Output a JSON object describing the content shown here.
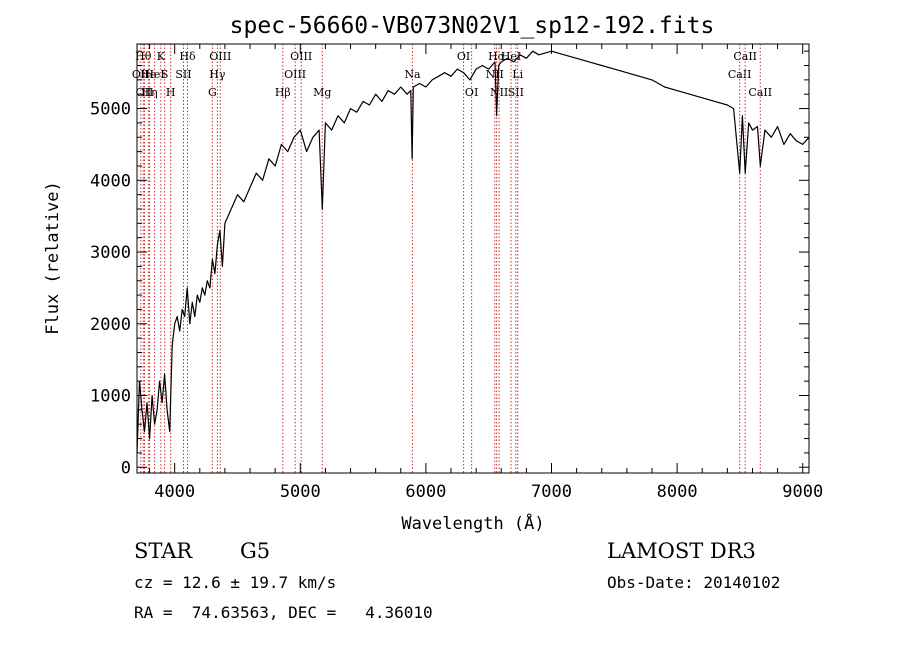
{
  "chart_data": {
    "type": "line",
    "title": "spec-56660-VB073N02V1_sp12-192.fits",
    "xlabel": "Wavelength (Å)",
    "ylabel": "Flux (relative)",
    "xlim": [
      3700,
      9050
    ],
    "ylim": [
      -80,
      5900
    ],
    "xticks": [
      4000,
      5000,
      6000,
      7000,
      8000,
      9000
    ],
    "yticks": [
      0,
      1000,
      2000,
      3000,
      4000,
      5000
    ],
    "series": [
      {
        "x": [
          3700,
          3720,
          3740,
          3760,
          3780,
          3800,
          3820,
          3840,
          3860,
          3880,
          3900,
          3920,
          3940,
          3960,
          3980,
          4000,
          4020,
          4040,
          4060,
          4080,
          4100,
          4120,
          4140,
          4160,
          4180,
          4200,
          4220,
          4240,
          4260,
          4280,
          4300,
          4320,
          4340,
          4360,
          4380,
          4400,
          4450,
          4500,
          4550,
          4600,
          4650,
          4700,
          4750,
          4800,
          4850,
          4900,
          4950,
          5000,
          5050,
          5100,
          5150,
          5175,
          5200,
          5250,
          5300,
          5350,
          5400,
          5450,
          5500,
          5550,
          5600,
          5650,
          5700,
          5750,
          5800,
          5850,
          5880,
          5890,
          5900,
          5950,
          6000,
          6050,
          6100,
          6150,
          6200,
          6250,
          6300,
          6350,
          6400,
          6450,
          6500,
          6550,
          6563,
          6580,
          6600,
          6650,
          6700,
          6750,
          6800,
          6850,
          6900,
          7000,
          7100,
          7200,
          7300,
          7400,
          7500,
          7600,
          7700,
          7800,
          7900,
          8000,
          8100,
          8200,
          8300,
          8400,
          8450,
          8498,
          8520,
          8542,
          8570,
          8600,
          8640,
          8662,
          8700,
          8750,
          8800,
          8850,
          8900,
          8950,
          9000,
          9050
        ],
        "y": [
          200,
          1200,
          800,
          500,
          900,
          400,
          1000,
          600,
          800,
          1200,
          900,
          1300,
          800,
          500,
          1700,
          2000,
          2100,
          1900,
          2200,
          2100,
          2500,
          2000,
          2300,
          2100,
          2400,
          2300,
          2500,
          2400,
          2600,
          2500,
          2900,
          2700,
          3100,
          3300,
          2800,
          3400,
          3600,
          3800,
          3700,
          3900,
          4100,
          4000,
          4300,
          4200,
          4500,
          4400,
          4600,
          4700,
          4400,
          4600,
          4700,
          3600,
          4800,
          4700,
          4900,
          4800,
          5000,
          4950,
          5100,
          5050,
          5200,
          5100,
          5250,
          5200,
          5300,
          5200,
          5250,
          4300,
          5300,
          5350,
          5300,
          5400,
          5450,
          5500,
          5450,
          5550,
          5500,
          5400,
          5550,
          5600,
          5550,
          5650,
          4900,
          5600,
          5650,
          5700,
          5650,
          5750,
          5700,
          5800,
          5750,
          5800,
          5750,
          5700,
          5650,
          5600,
          5550,
          5500,
          5450,
          5400,
          5300,
          5250,
          5200,
          5150,
          5100,
          5050,
          5000,
          4100,
          4900,
          4100,
          4800,
          4700,
          4750,
          4200,
          4700,
          4600,
          4750,
          4500,
          4650,
          4550,
          4500,
          4600
        ]
      }
    ],
    "line_markers": [
      {
        "x": 3750,
        "label": "Hθ",
        "row": 0
      },
      {
        "x": 3730,
        "label": "OII",
        "row": 1
      },
      {
        "x": 3760,
        "label": "OII",
        "row": 2
      },
      {
        "x": 3790,
        "label": "He",
        "row": 1
      },
      {
        "x": 3800,
        "label": "Hη",
        "row": 2
      },
      {
        "x": 3840,
        "label": "HeI",
        "row": 1
      },
      {
        "x": 3890,
        "label": "K",
        "row": 0
      },
      {
        "x": 3920,
        "label": "S",
        "row": 1
      },
      {
        "x": 3968,
        "label": "H",
        "row": 2
      },
      {
        "x": 4070,
        "label": "SII",
        "row": 1
      },
      {
        "x": 4102,
        "label": "Hδ",
        "row": 0
      },
      {
        "x": 4300,
        "label": "G",
        "row": 2
      },
      {
        "x": 4340,
        "label": "Hγ",
        "row": 1
      },
      {
        "x": 4363,
        "label": "OIII",
        "row": 0
      },
      {
        "x": 4861,
        "label": "Hβ",
        "row": 2
      },
      {
        "x": 4959,
        "label": "OIII",
        "row": 1
      },
      {
        "x": 5007,
        "label": "OIII",
        "row": 0
      },
      {
        "x": 5175,
        "label": "Mg",
        "row": 2
      },
      {
        "x": 5893,
        "label": "Na",
        "row": 1
      },
      {
        "x": 6300,
        "label": "OI",
        "row": 0
      },
      {
        "x": 6364,
        "label": "OI",
        "row": 2
      },
      {
        "x": 6548,
        "label": "NII",
        "row": 1
      },
      {
        "x": 6563,
        "label": "Hα",
        "row": 0
      },
      {
        "x": 6583,
        "label": "NII",
        "row": 2
      },
      {
        "x": 6678,
        "label": "HeI",
        "row": 0
      },
      {
        "x": 6716,
        "label": "SII",
        "row": 2
      },
      {
        "x": 6731,
        "label": "Li",
        "row": 1
      },
      {
        "x": 8498,
        "label": "CaII",
        "row": 1
      },
      {
        "x": 8542,
        "label": "CaII",
        "row": 0
      },
      {
        "x": 8662,
        "label": "CaII",
        "row": 2
      }
    ]
  },
  "info": {
    "class_label": "STAR",
    "subclass": "G5",
    "survey": "LAMOST DR3",
    "redshift": "cz = 12.6 ± 19.7 km/s",
    "obs_date": "Obs-Date: 20140102",
    "coords": "RA =  74.63563, DEC =   4.36010"
  },
  "colors": {
    "line_marker": "#cc3333",
    "spectrum": "#000000",
    "axes": "#000000"
  }
}
